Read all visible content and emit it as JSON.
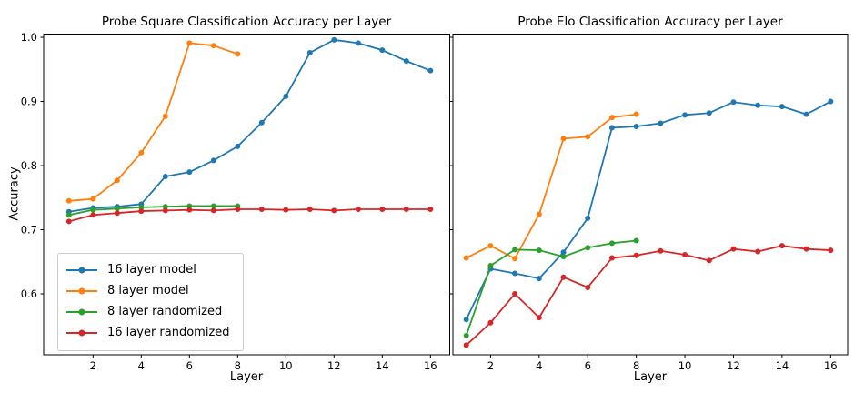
{
  "figure": {
    "background": "#ffffff"
  },
  "chart_data": [
    {
      "type": "line",
      "title": "Probe Square Classification Accuracy per Layer",
      "xlabel": "Layer",
      "ylabel": "Accuracy",
      "xlim": [
        -0.05,
        16.8
      ],
      "ylim": [
        0.505,
        1.005
      ],
      "xticks": [
        2,
        4,
        6,
        8,
        10,
        12,
        14,
        16
      ],
      "yticks": [
        0.6,
        0.7,
        0.8,
        0.9,
        1.0
      ],
      "grid": false,
      "legend_position": "lower left",
      "series": [
        {
          "name": "16 layer model",
          "color": "#1f77b4",
          "x": [
            1,
            2,
            3,
            4,
            5,
            6,
            7,
            8,
            9,
            10,
            11,
            12,
            13,
            14,
            15,
            16
          ],
          "values": [
            0.728,
            0.734,
            0.736,
            0.74,
            0.783,
            0.79,
            0.808,
            0.83,
            0.867,
            0.908,
            0.976,
            0.996,
            0.991,
            0.98,
            0.963,
            0.948
          ]
        },
        {
          "name": "8 layer model",
          "color": "#ff7f0e",
          "x": [
            1,
            2,
            3,
            4,
            5,
            6,
            7,
            8
          ],
          "values": [
            0.745,
            0.748,
            0.777,
            0.82,
            0.877,
            0.991,
            0.987,
            0.974
          ]
        },
        {
          "name": "8 layer randomized",
          "color": "#2ca02c",
          "x": [
            1,
            2,
            3,
            4,
            5,
            6,
            7,
            8
          ],
          "values": [
            0.723,
            0.731,
            0.733,
            0.735,
            0.736,
            0.737,
            0.737,
            0.737
          ]
        },
        {
          "name": "16 layer randomized",
          "color": "#d62728",
          "x": [
            1,
            2,
            3,
            4,
            5,
            6,
            7,
            8,
            9,
            10,
            11,
            12,
            13,
            14,
            15,
            16
          ],
          "values": [
            0.713,
            0.723,
            0.726,
            0.729,
            0.73,
            0.731,
            0.73,
            0.732,
            0.732,
            0.731,
            0.732,
            0.73,
            0.732,
            0.732,
            0.732,
            0.732
          ]
        }
      ]
    },
    {
      "type": "line",
      "title": "Probe Elo Classification Accuracy per Layer",
      "xlabel": "Layer",
      "ylabel": "",
      "xlim": [
        0.45,
        16.7
      ],
      "ylim": [
        0.505,
        1.005
      ],
      "xticks": [
        2,
        4,
        6,
        8,
        10,
        12,
        14,
        16
      ],
      "yticks": [
        0.6,
        0.7,
        0.8,
        0.9,
        1.0
      ],
      "grid": false,
      "legend_position": null,
      "series": [
        {
          "name": "16 layer model",
          "color": "#1f77b4",
          "x": [
            1,
            2,
            3,
            4,
            5,
            6,
            7,
            8,
            9,
            10,
            11,
            12,
            13,
            14,
            15,
            16
          ],
          "values": [
            0.56,
            0.639,
            0.632,
            0.624,
            0.665,
            0.718,
            0.859,
            0.861,
            0.866,
            0.879,
            0.882,
            0.899,
            0.894,
            0.892,
            0.88,
            0.9
          ]
        },
        {
          "name": "8 layer model",
          "color": "#ff7f0e",
          "x": [
            1,
            2,
            3,
            4,
            5,
            6,
            7,
            8
          ],
          "values": [
            0.656,
            0.675,
            0.655,
            0.724,
            0.842,
            0.845,
            0.875,
            0.88
          ]
        },
        {
          "name": "8 layer randomized",
          "color": "#2ca02c",
          "x": [
            1,
            2,
            3,
            4,
            5,
            6,
            7,
            8
          ],
          "values": [
            0.535,
            0.644,
            0.669,
            0.668,
            0.658,
            0.672,
            0.679,
            0.683
          ]
        },
        {
          "name": "16 layer randomized",
          "color": "#d62728",
          "x": [
            1,
            2,
            3,
            4,
            5,
            6,
            7,
            8,
            9,
            10,
            11,
            12,
            13,
            14,
            15,
            16
          ],
          "values": [
            0.52,
            0.555,
            0.6,
            0.563,
            0.626,
            0.61,
            0.656,
            0.66,
            0.667,
            0.661,
            0.652,
            0.67,
            0.666,
            0.675,
            0.67,
            0.668
          ]
        }
      ]
    }
  ]
}
